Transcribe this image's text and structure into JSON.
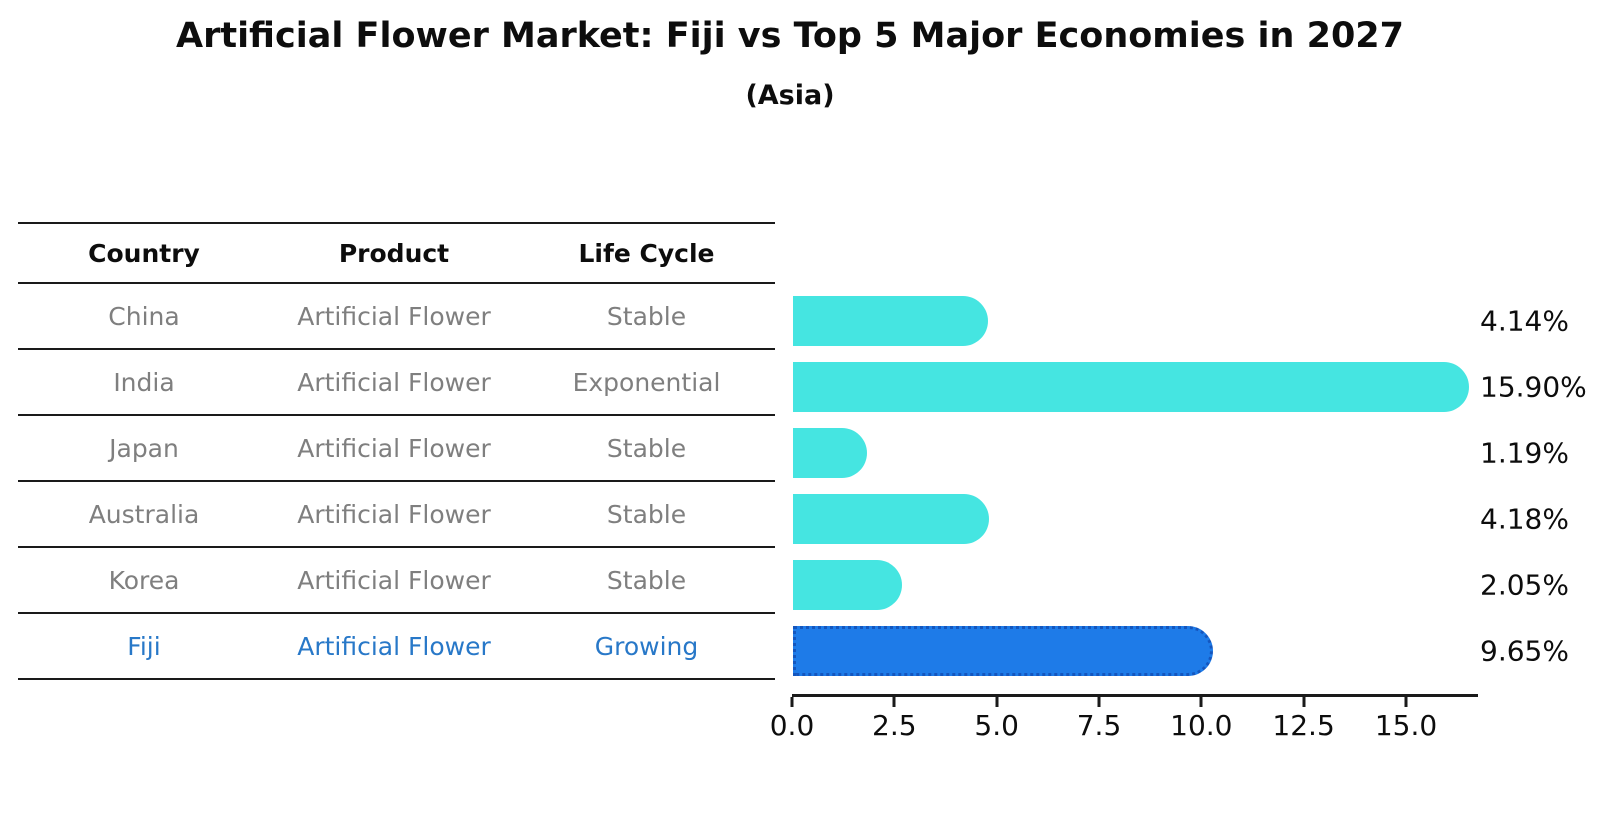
{
  "page": {
    "title": "Artificial Flower Market: Fiji vs Top 5 Major Economies in 2027",
    "subtitle": "(Asia)"
  },
  "table": {
    "headers": [
      "Country",
      "Product",
      "Life Cycle"
    ],
    "rows": [
      {
        "country": "China",
        "product": "Artificial Flower",
        "life_cycle": "Stable"
      },
      {
        "country": "India",
        "product": "Artificial Flower",
        "life_cycle": "Exponential"
      },
      {
        "country": "Japan",
        "product": "Artificial Flower",
        "life_cycle": "Stable"
      },
      {
        "country": "Australia",
        "product": "Artificial Flower",
        "life_cycle": "Stable"
      },
      {
        "country": "Korea",
        "product": "Artificial Flower",
        "life_cycle": "Stable"
      },
      {
        "country": "Fiji",
        "product": "Artificial Flower",
        "life_cycle": "Growing"
      }
    ],
    "highlight_row": "Fiji"
  },
  "chart_data": {
    "type": "bar",
    "orientation": "horizontal",
    "title": "Artificial Flower Market: Fiji vs Top 5 Major Economies in 2027",
    "subtitle": "(Asia)",
    "categories": [
      "China",
      "India",
      "Japan",
      "Australia",
      "Korea",
      "Fiji"
    ],
    "values": [
      4.14,
      15.9,
      1.19,
      4.18,
      2.05,
      9.65
    ],
    "value_labels": [
      "4.14%",
      "15.90%",
      "1.19%",
      "4.18%",
      "2.05%",
      "9.65%"
    ],
    "xlabel": "",
    "ylabel": "",
    "xlim": [
      0,
      16.76
    ],
    "x_ticks": [
      0.0,
      2.5,
      5.0,
      7.5,
      10.0,
      12.5,
      15.0
    ],
    "x_tick_labels": [
      "0.0",
      "2.5",
      "5.0",
      "7.5",
      "10.0",
      "12.5",
      "15.0"
    ],
    "grid": false,
    "legend": false,
    "highlight_index": 5,
    "bar_color": "#45e5e1",
    "highlight_bar_color": "#1e7be8",
    "highlight_bar_edge_color": "#1456be",
    "highlight_text_color": "#2878c8",
    "muted_text_color": "#7f7f7f"
  }
}
